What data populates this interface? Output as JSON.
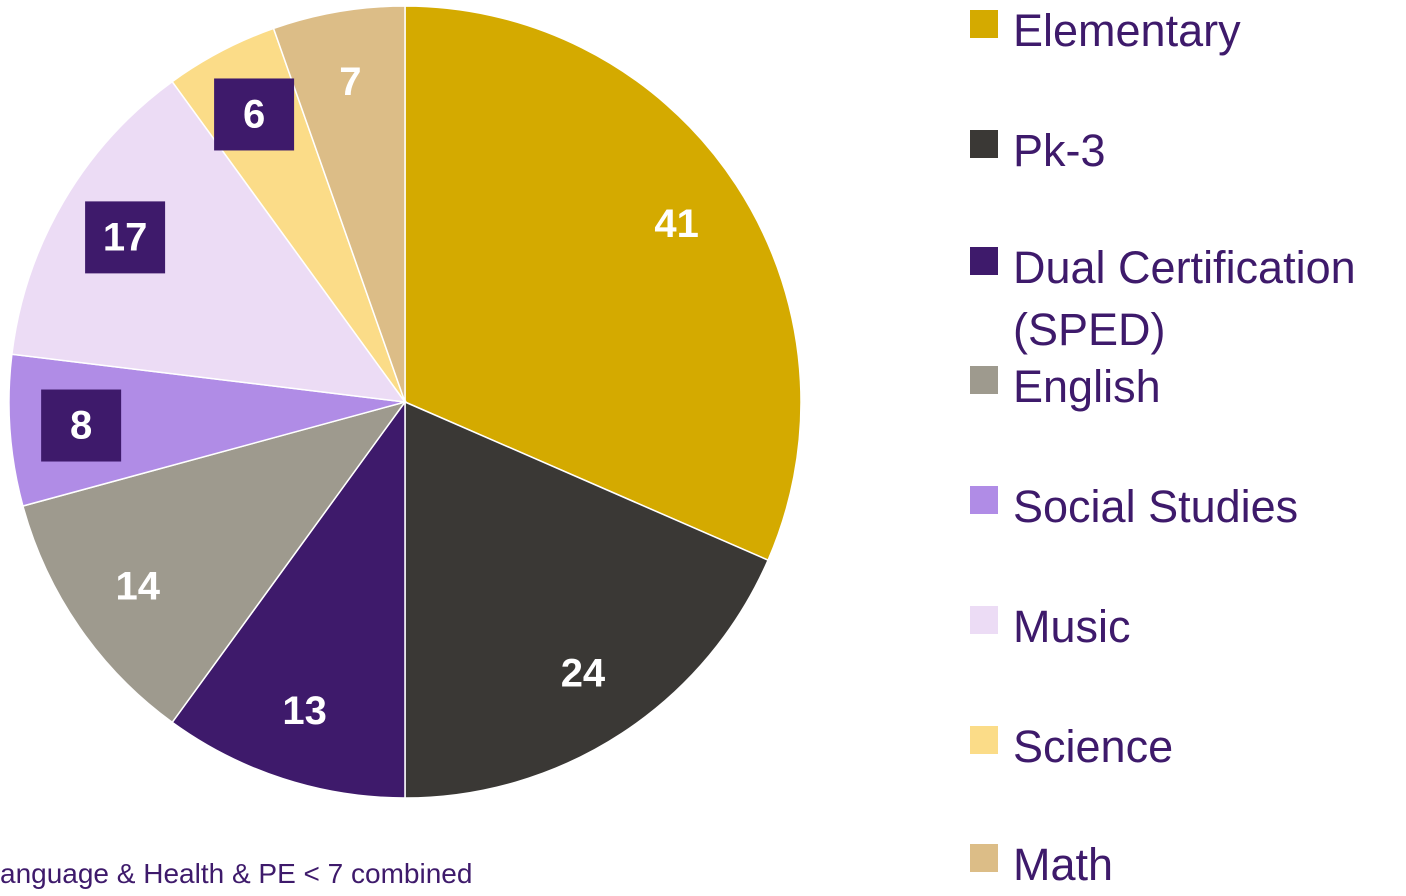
{
  "chart_data": {
    "type": "pie",
    "categories": [
      "Elementary",
      "Pk-3",
      "Dual Certification (SPED)",
      "English",
      "Social Studies",
      "Music",
      "Science",
      "Math"
    ],
    "values": [
      41,
      24,
      13,
      14,
      8,
      17,
      6,
      7
    ],
    "colors": [
      "#d4aa00",
      "#3a3835",
      "#3e1a6b",
      "#9e9a8e",
      "#b08ce6",
      "#ecdcf5",
      "#fbdc88",
      "#dcbd87"
    ],
    "boxed_labels": [
      false,
      false,
      false,
      false,
      true,
      true,
      true,
      false
    ],
    "label_box_color": "#3e1a6b",
    "legend": "right",
    "annotation": "anguage & Health & PE < 7 combined"
  }
}
